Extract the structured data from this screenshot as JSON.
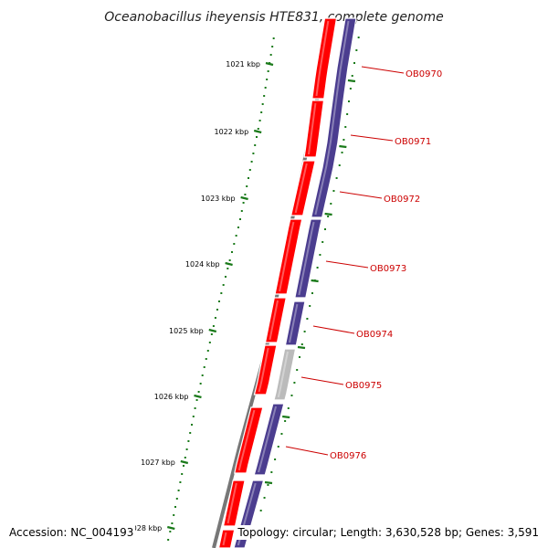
{
  "title": "Oceanobacillus iheyensis HTE831, complete genome",
  "footer": {
    "accession": "Accession: NC_004193",
    "topology": "Topology: circular; Length: 3,630,528 bp; Genes: 3,591"
  },
  "colors": {
    "forward_gene": "#ff0000",
    "reverse_gene": "#4b3d8f",
    "unknown_gene": "#bbbbbb",
    "backbone": "#777777",
    "scale": "#1a7a1a",
    "label": "#cc0000"
  },
  "scale_ticks": [
    {
      "label": "1021 kbp"
    },
    {
      "label": "1022 kbp"
    },
    {
      "label": "1023 kbp"
    },
    {
      "label": "1024 kbp"
    },
    {
      "label": "1025 kbp"
    },
    {
      "label": "1026 kbp"
    },
    {
      "label": "1027 kbp"
    },
    {
      "label": "028 kbp"
    }
  ],
  "genes": [
    {
      "label": "OB0970"
    },
    {
      "label": "OB0971"
    },
    {
      "label": "OB0972"
    },
    {
      "label": "OB0973"
    },
    {
      "label": "OB0974"
    },
    {
      "label": "OB0975"
    },
    {
      "label": "OB0976"
    }
  ]
}
